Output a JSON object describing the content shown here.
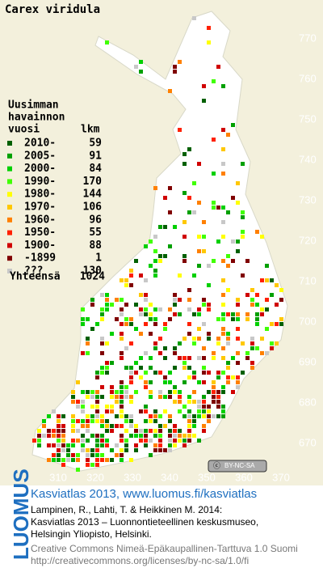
{
  "title": "Carex viridula",
  "legend": {
    "heading": [
      "Uusimman",
      "havainnon",
      "vuosi"
    ],
    "count_heading": "lkm",
    "rows": [
      {
        "label": "2010-",
        "count": 59,
        "color": "#006000"
      },
      {
        "label": "2005-",
        "count": 91,
        "color": "#00a000"
      },
      {
        "label": "2000-",
        "count": 84,
        "color": "#00d000"
      },
      {
        "label": "1990-",
        "count": 170,
        "color": "#40ff00"
      },
      {
        "label": "1980-",
        "count": 144,
        "color": "#ffff00"
      },
      {
        "label": "1970-",
        "count": 106,
        "color": "#ffc800"
      },
      {
        "label": "1960-",
        "count": 96,
        "color": "#ff8000"
      },
      {
        "label": "1950-",
        "count": 55,
        "color": "#ff2000"
      },
      {
        "label": "1900-",
        "count": 88,
        "color": "#d00000"
      },
      {
        "label": "-1899",
        "count": 1,
        "color": "#800000"
      },
      {
        "label": "???",
        "count": 130,
        "color": "#c8c8c8"
      }
    ],
    "total_label": "Yhteensä",
    "total": 1024
  },
  "grid": {
    "y_labels": [
      "770",
      "760",
      "750",
      "740",
      "730",
      "720",
      "710",
      "700",
      "690",
      "680",
      "670"
    ],
    "x_labels": [
      "310",
      "320",
      "330",
      "340",
      "350",
      "360",
      "370"
    ]
  },
  "badge": "BY-NC-SA",
  "logo": "LUOMUS",
  "footer": {
    "link": "Kasviatlas 2013, www.luomus.fi/kasviatlas",
    "citation": [
      "Lampinen, R., Lahti, T. & Heikkinen M. 2014:",
      "Kasviatlas 2013 – Luonnontieteellinen keskusmuseo,",
      "Helsingin Yliopisto, Helsinki."
    ],
    "license": [
      "Creative Commons Nimeä-Epäkaupallinen-Tarttuva 1.0 Suomi",
      "http://creativecommons.org/licenses/by-nc-sa/1.0/fi"
    ]
  }
}
